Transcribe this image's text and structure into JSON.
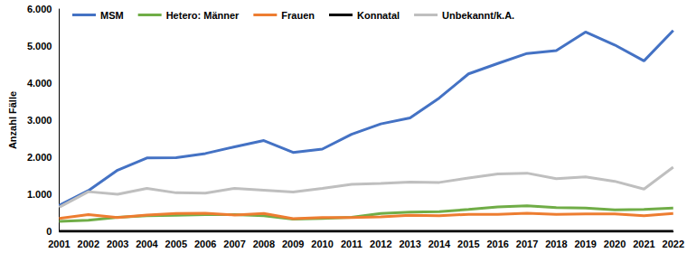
{
  "chart_data": {
    "type": "line",
    "categories": [
      "2001",
      "2002",
      "2003",
      "2004",
      "2005",
      "2006",
      "2007",
      "2008",
      "2009",
      "2010",
      "2011",
      "2012",
      "2013",
      "2014",
      "2015",
      "2016",
      "2017",
      "2018",
      "2019",
      "2020",
      "2021",
      "2022"
    ],
    "y_label": "Anzahl Fälle",
    "ylim": [
      0,
      6000
    ],
    "yticks": [
      0,
      {
        "value": 1000,
        "label": "1.000"
      },
      {
        "value": 2000,
        "label": "2.000"
      },
      {
        "value": 3000,
        "label": "3.000"
      },
      {
        "value": 4000,
        "label": "4.000"
      },
      {
        "value": 5000,
        "label": "5.000"
      },
      {
        "value": 6000,
        "label": "6.000"
      }
    ],
    "grid": false,
    "legend": "top-left",
    "series": [
      {
        "name": "MSM",
        "color": "#4472c4",
        "values": [
          700,
          1100,
          1650,
          1980,
          1990,
          2100,
          2280,
          2450,
          2130,
          2220,
          2620,
          2900,
          3060,
          3600,
          4250,
          4530,
          4800,
          4880,
          5380,
          5030,
          4600,
          5420
        ]
      },
      {
        "name": "Hetero: Männer",
        "color": "#70ad47",
        "values": [
          270,
          300,
          380,
          420,
          430,
          450,
          450,
          420,
          330,
          350,
          380,
          480,
          520,
          530,
          590,
          660,
          690,
          640,
          630,
          580,
          590,
          630
        ]
      },
      {
        "name": "Frauen",
        "color": "#ed7d31",
        "values": [
          350,
          450,
          370,
          440,
          480,
          490,
          440,
          480,
          340,
          370,
          370,
          390,
          430,
          420,
          460,
          460,
          490,
          460,
          470,
          470,
          420,
          480
        ]
      },
      {
        "name": "Konnatal",
        "color": "#000000",
        "values": [
          3,
          3,
          3,
          3,
          3,
          3,
          3,
          3,
          3,
          3,
          3,
          3,
          3,
          3,
          3,
          3,
          3,
          3,
          3,
          3,
          3,
          3
        ]
      },
      {
        "name": "Unbekannt/k.A.",
        "color": "#bfbfbf",
        "values": [
          650,
          1070,
          1000,
          1160,
          1040,
          1030,
          1160,
          1110,
          1060,
          1160,
          1270,
          1290,
          1330,
          1320,
          1440,
          1550,
          1570,
          1420,
          1470,
          1350,
          1140,
          1730
        ]
      }
    ]
  }
}
